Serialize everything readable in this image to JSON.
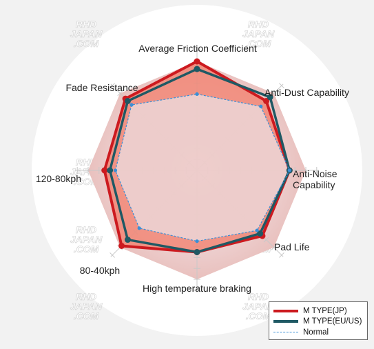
{
  "chart_data": {
    "type": "radar",
    "title": "",
    "axes": [
      "Average Friction Coefficient",
      "Anti-Dust Capability",
      "Anti-Noise Capability",
      "Pad Life",
      "High temperature braking",
      "80-40kph",
      "120-80kph",
      "Fade Resistance"
    ],
    "axis_label_lines": [
      [
        "Average Friction Coefficient"
      ],
      [
        "Anti-Dust Capability"
      ],
      [
        "Anti-Noise",
        "Capability"
      ],
      [
        "Pad Life"
      ],
      [
        "High temperature braking"
      ],
      [
        "80-40kph"
      ],
      [
        "120-80kph"
      ],
      [
        "Fade Resistance"
      ]
    ],
    "rmax": 10,
    "ring_ticks": 10,
    "series": [
      {
        "name": "M TYPE(JP)",
        "color": "#cc1a1f",
        "style": "solid",
        "values": [
          10,
          9.0,
          8.5,
          8.5,
          7.5,
          9.8,
          8.5,
          9.3
        ]
      },
      {
        "name": "M TYPE(EU/US)",
        "color": "#1f5964",
        "style": "solid",
        "values": [
          9.3,
          9.5,
          8.5,
          8.2,
          7.5,
          9.0,
          8.0,
          9.0
        ]
      },
      {
        "name": "Normal",
        "color": "#3b8fd6",
        "style": "dashed",
        "values": [
          7.0,
          8.3,
          8.5,
          7.8,
          6.5,
          7.5,
          7.5,
          8.5
        ]
      }
    ],
    "watermark": [
      "RHD",
      "JAPAN",
      ".COM"
    ]
  },
  "legend": {
    "items": [
      {
        "label": "M TYPE(JP)",
        "color": "#cc1a1f",
        "style": "solid"
      },
      {
        "label": "M TYPE(EU/US)",
        "color": "#1f5964",
        "style": "solid"
      },
      {
        "label": "Normal",
        "color": "#3b8fd6",
        "style": "dashed"
      }
    ]
  }
}
